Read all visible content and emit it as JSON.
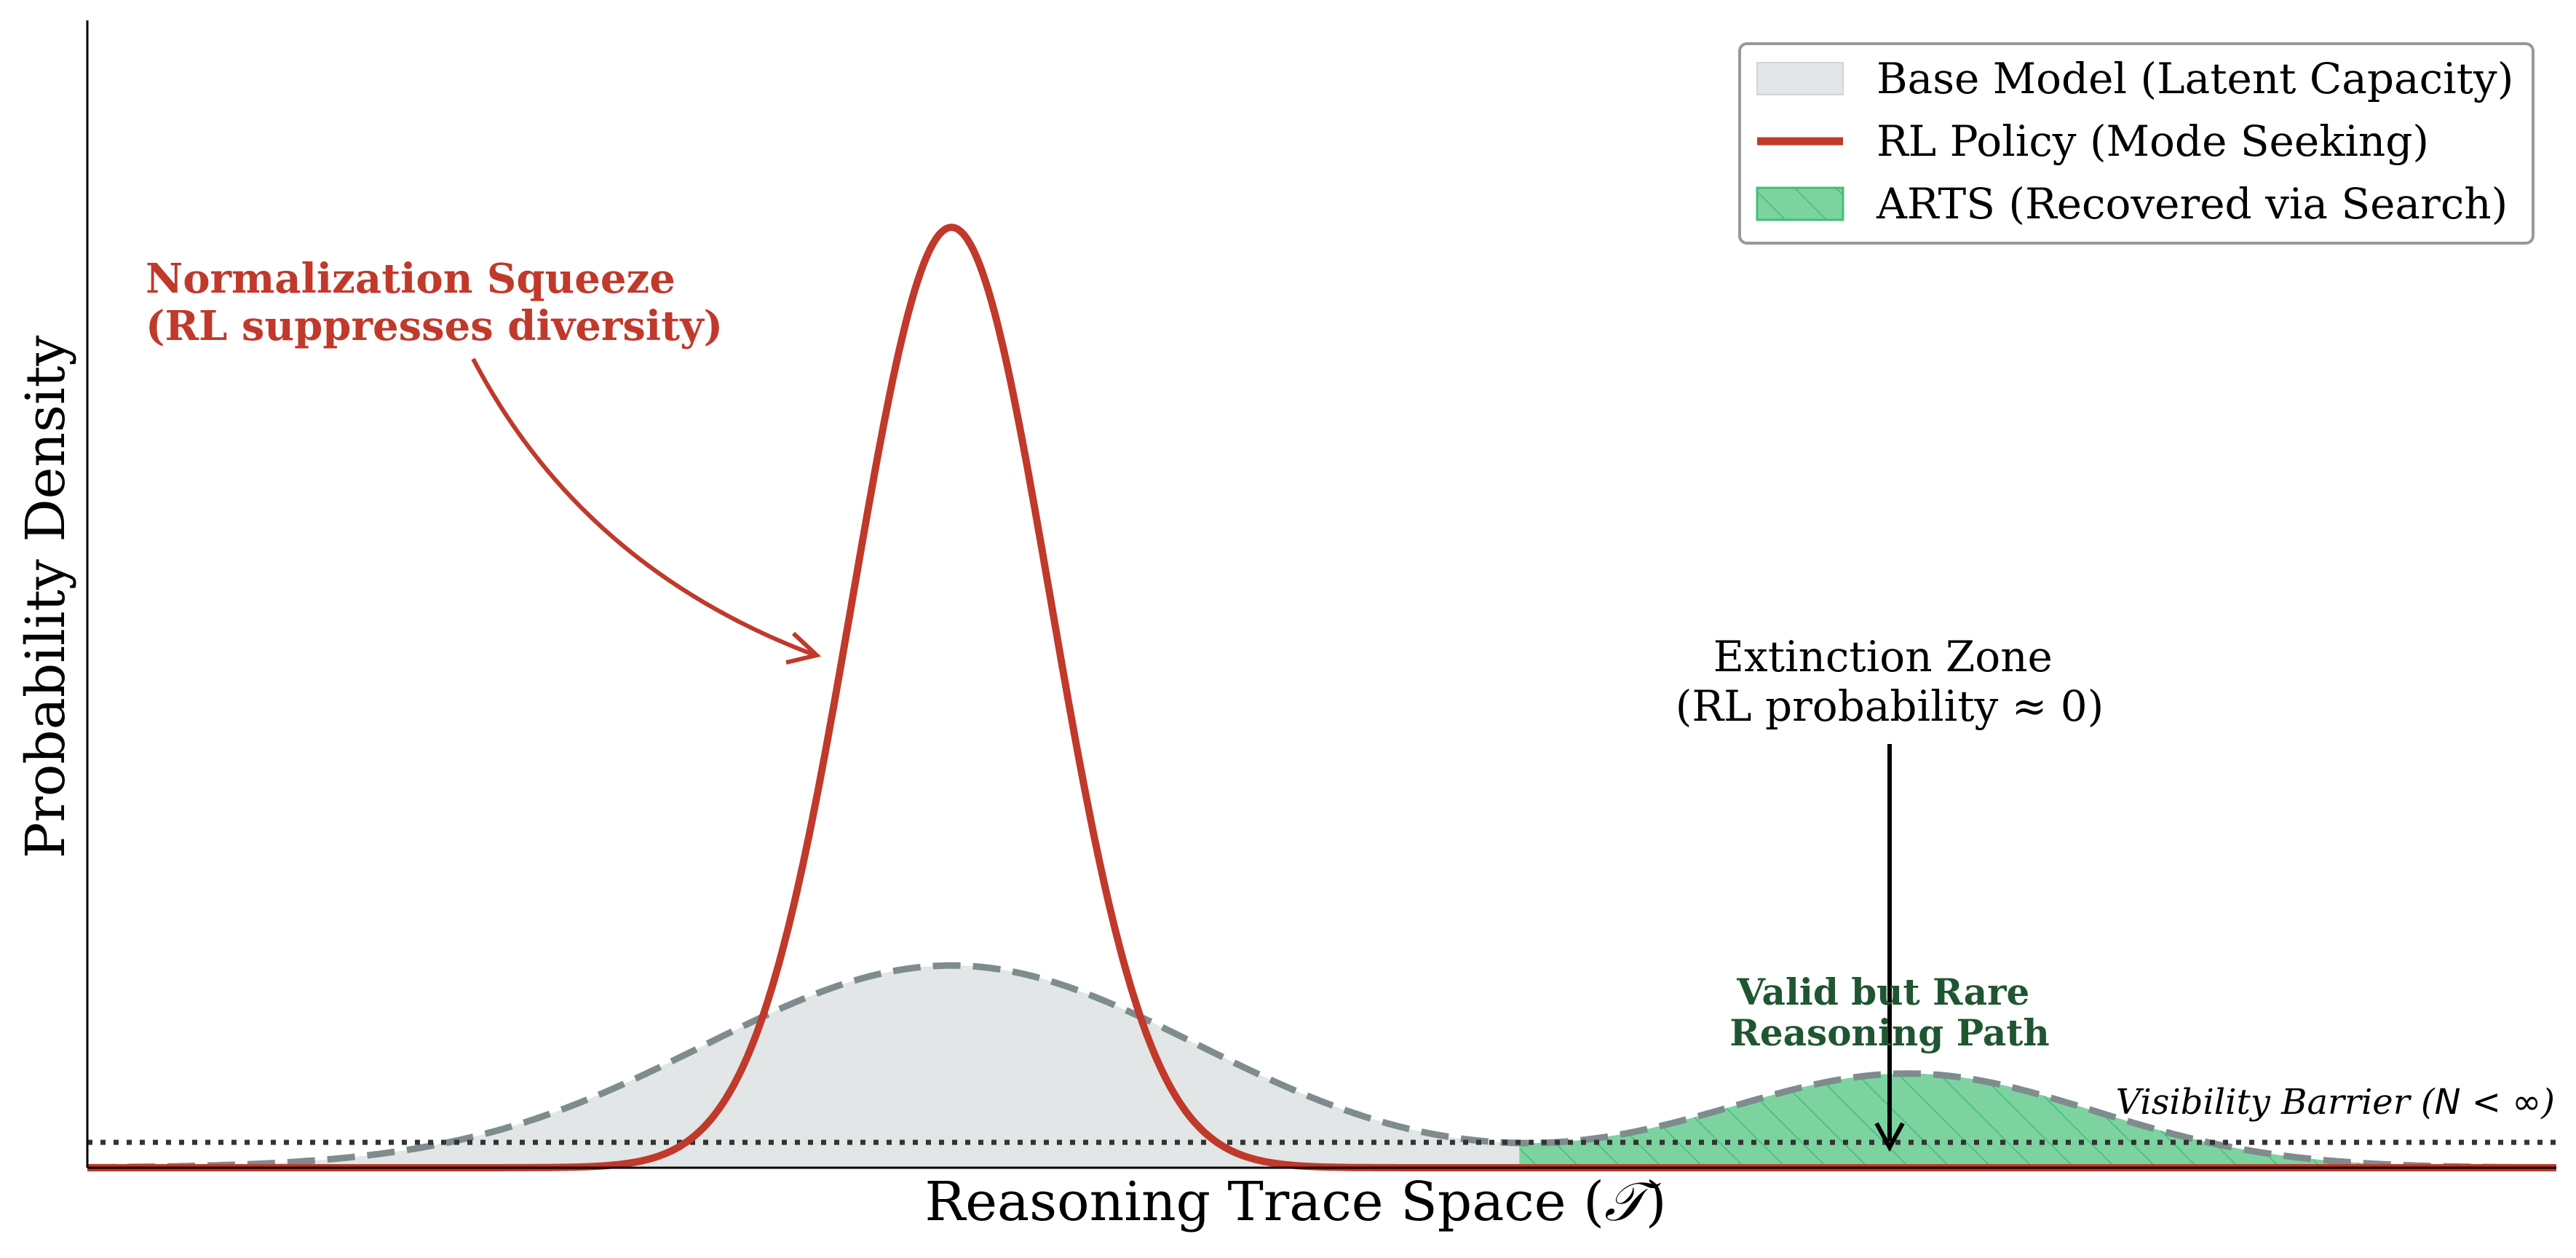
{
  "chart_data": {
    "type": "area",
    "title": "",
    "xlabel_prefix": "Reasoning Trace Space (",
    "xlabel_symbol": "𝒯",
    "xlabel_suffix": ")",
    "ylabel": "Probability Density",
    "xlim": [
      -5,
      15
    ],
    "ylim": [
      0,
      1.22
    ],
    "grid": false,
    "legend_position": "top-right",
    "series": [
      {
        "name": "Base Model (Latent Capacity)",
        "kind": "dashed-filled",
        "components": [
          {
            "center": 2,
            "sigma": 2.0,
            "peak": 0.215
          },
          {
            "center": 9.75,
            "sigma": 1.5,
            "peak": 0.1
          }
        ]
      },
      {
        "name": "RL Policy (Mode Seeking)",
        "kind": "line",
        "components": [
          {
            "center": 2,
            "sigma": 0.8,
            "peak": 1.0
          }
        ]
      },
      {
        "name": "ARTS (Recovered via Search)",
        "kind": "hatched-fill",
        "x_range": [
          6.6,
          15
        ]
      }
    ],
    "visibility_barrier": {
      "y": 0.027,
      "label": "Visibility Barrier (",
      "label_math": "N < ∞",
      "label_suffix": ")"
    },
    "annotations": {
      "squeeze_line1": "Normalization Squeeze",
      "squeeze_line2": "(RL suppresses diversity)",
      "extinction_line1": "Extinction Zone",
      "extinction_line2": "(RL probability  ≈  0)",
      "valid_line1": "Valid but Rare",
      "valid_line2": "Reasoning Path"
    },
    "colors": {
      "rl": "#c0392b",
      "base_fill": "#e2e6e7",
      "base_line": "#7f8c8d",
      "arts_fill": "#7dd3a0",
      "arts_hatch": "#3fbf7a",
      "valid_text": "#1e5631",
      "barrier": "#333333"
    }
  }
}
